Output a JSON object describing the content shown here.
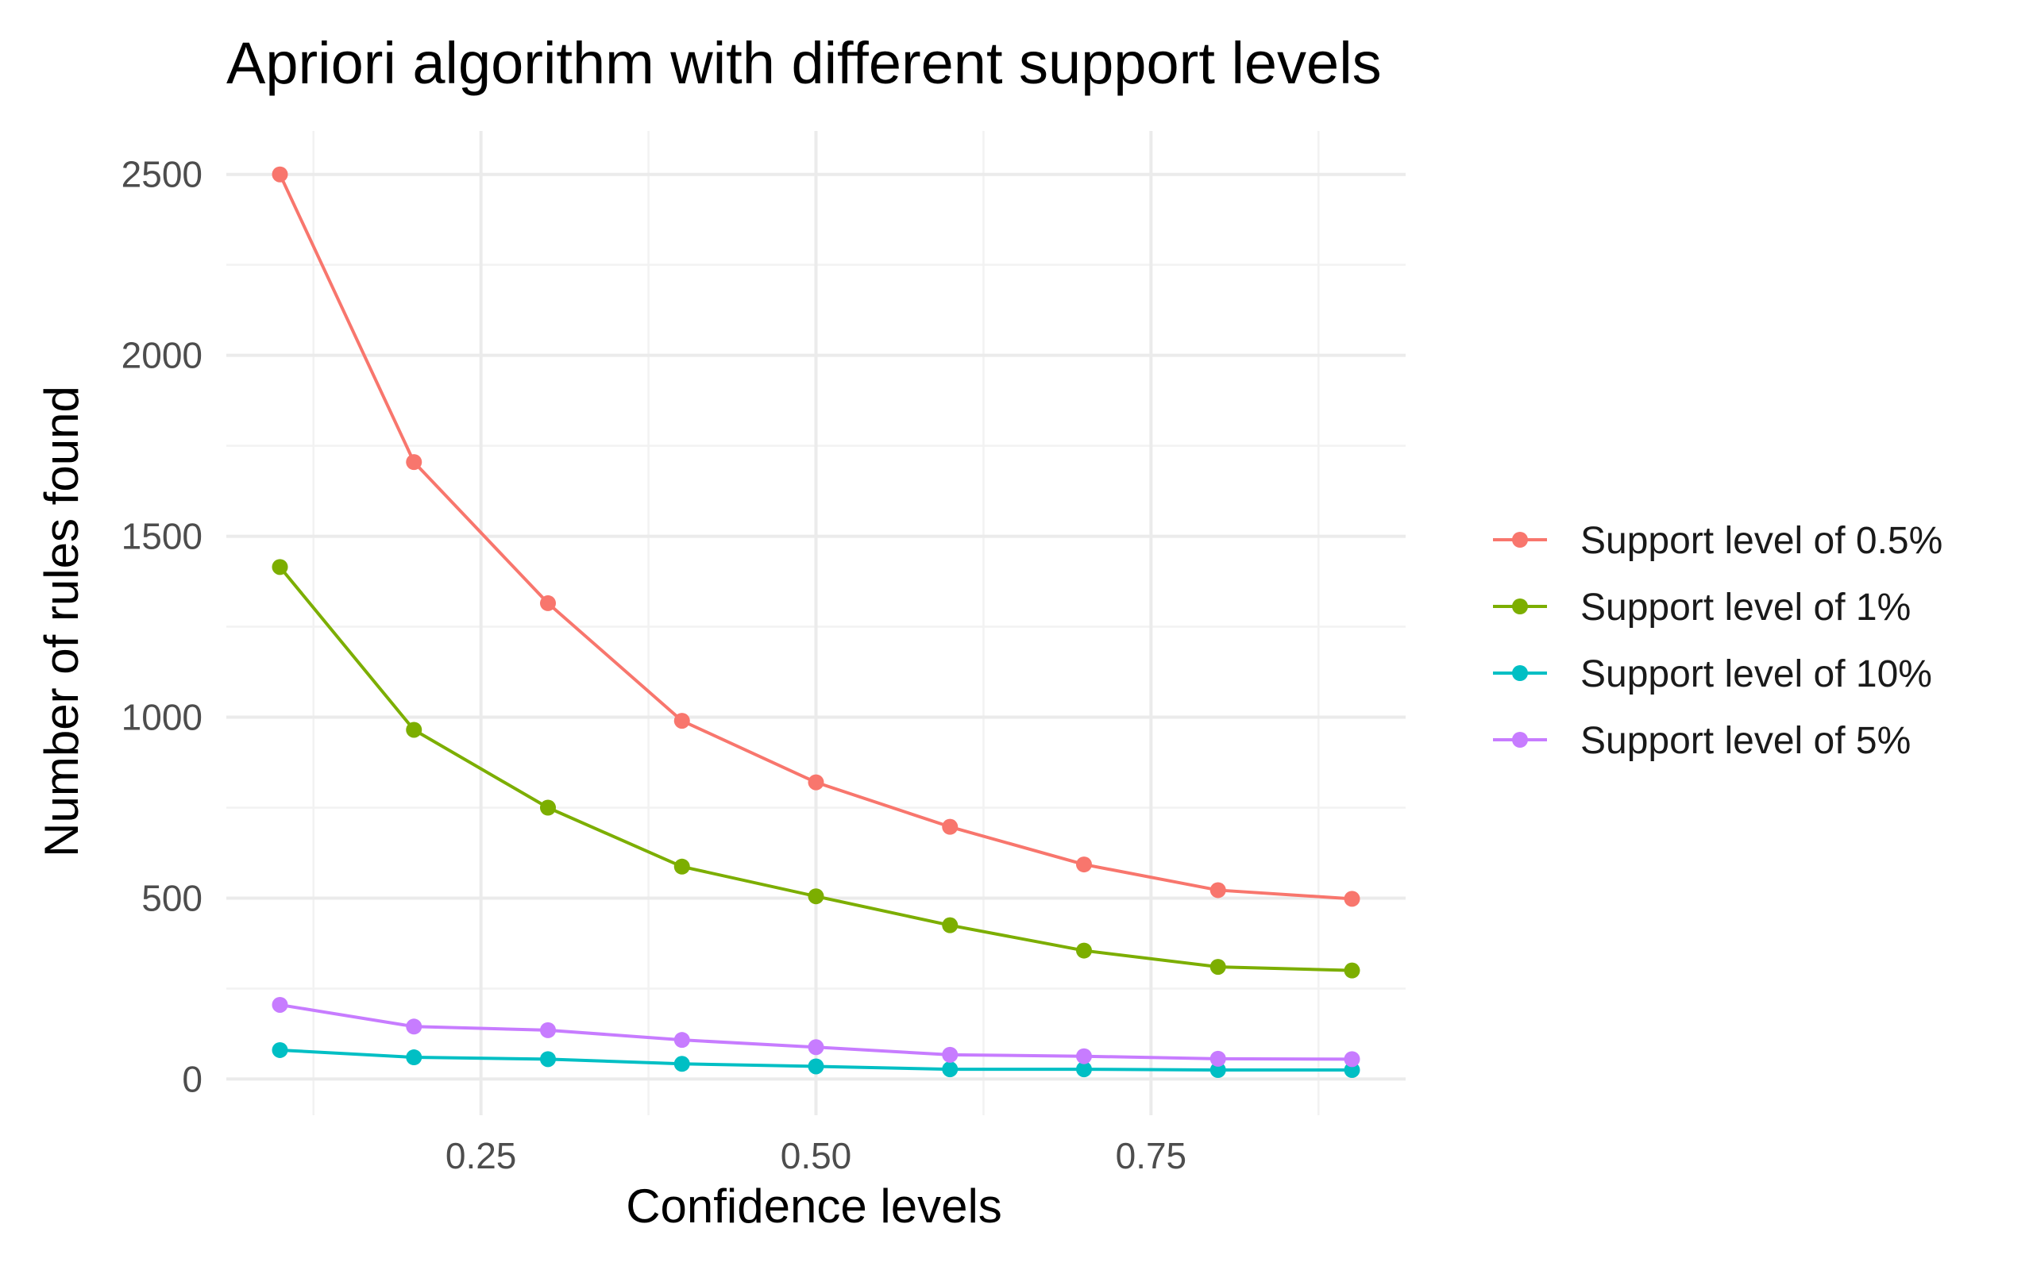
{
  "chart_data": {
    "type": "line",
    "title": "Apriori algorithm with different support levels",
    "xlabel": "Confidence levels",
    "ylabel": "Number of rules found",
    "x": [
      0.1,
      0.2,
      0.3,
      0.4,
      0.5,
      0.6,
      0.7,
      0.8,
      0.9
    ],
    "xlim": [
      0.06,
      0.94
    ],
    "ylim": [
      -100,
      2620
    ],
    "x_ticks": [
      0.25,
      0.5,
      0.75
    ],
    "x_tick_labels": [
      "0.25",
      "0.50",
      "0.75"
    ],
    "y_ticks": [
      0,
      500,
      1000,
      1500,
      2000,
      2500
    ],
    "y_tick_labels": [
      "0",
      "500",
      "1000",
      "1500",
      "2000",
      "2500"
    ],
    "grid": true,
    "legend_position": "right",
    "series": [
      {
        "name": "Support level of 0.5%",
        "color": "#F8766D",
        "values": [
          2500,
          1705,
          1315,
          990,
          820,
          697,
          593,
          522,
          498
        ]
      },
      {
        "name": "Support level of 1%",
        "color": "#7CAE00",
        "values": [
          1415,
          965,
          750,
          587,
          505,
          425,
          355,
          310,
          300
        ]
      },
      {
        "name": "Support level of 10%",
        "color": "#00BFC4",
        "values": [
          80,
          60,
          55,
          42,
          35,
          27,
          27,
          25,
          25
        ]
      },
      {
        "name": "Support level of 5%",
        "color": "#C77CFF",
        "values": [
          205,
          145,
          135,
          108,
          88,
          67,
          63,
          56,
          55
        ]
      }
    ]
  }
}
